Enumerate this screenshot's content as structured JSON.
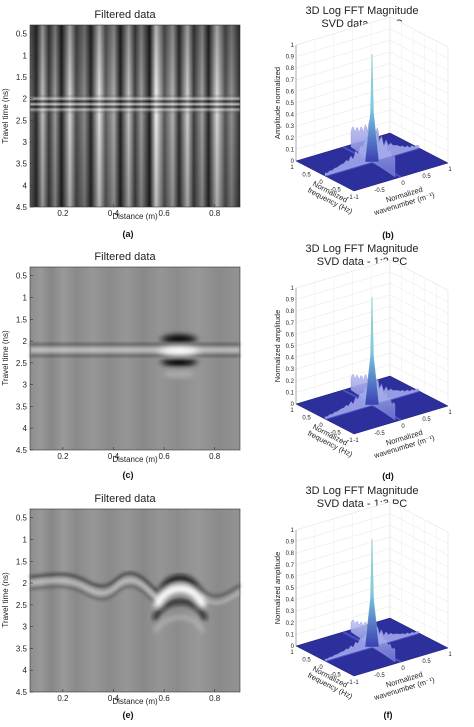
{
  "chart_data": [
    {
      "panel": "(a)",
      "type": "heatmap",
      "title": "Filtered data",
      "xlabel": "Distance (m)",
      "ylabel": "Travel time (ns)",
      "x_ticks": [
        "0.2",
        "0.4",
        "0.6",
        "0.8"
      ],
      "y_ticks": [
        "0.5",
        "1",
        "1.5",
        "2",
        "2.5",
        "3",
        "3.5",
        "4",
        "4.5"
      ],
      "xlim": [
        0.07,
        0.9
      ],
      "ylim": [
        4.5,
        0.3
      ],
      "colormap": "gray"
    },
    {
      "panel": "(b)",
      "type": "surface3d",
      "title": [
        "3D Log FFT Magnitude",
        "SVD data - 1 PC"
      ],
      "zlabel": "Amplitude normalized",
      "xlabel": [
        "Normalized",
        "frequency (Hz)"
      ],
      "ylabel": [
        "Normalized",
        "wavenumber (m⁻¹)"
      ],
      "z_ticks": [
        "0",
        "0.1",
        "0.2",
        "0.3",
        "0.4",
        "0.5",
        "0.6",
        "0.7",
        "0.8",
        "0.9",
        "1"
      ],
      "x_ticks": [
        "1",
        "0.5",
        "0",
        "-0.5",
        "-1"
      ],
      "y_ticks": [
        "-1",
        "-0.5",
        "0",
        "0.5",
        "1"
      ],
      "zlim": [
        0,
        1
      ],
      "colormap": "cool"
    },
    {
      "panel": "(c)",
      "type": "heatmap",
      "title": "Filtered data",
      "xlabel": "Distance (m)",
      "ylabel": "Travel time (ns)",
      "x_ticks": [
        "0.2",
        "0.4",
        "0.6",
        "0.8"
      ],
      "y_ticks": [
        "0.5",
        "1",
        "1.5",
        "2",
        "2.5",
        "3",
        "3.5",
        "4",
        "4.5"
      ],
      "xlim": [
        0.07,
        0.9
      ],
      "ylim": [
        4.5,
        0.3
      ],
      "colormap": "gray"
    },
    {
      "panel": "(d)",
      "type": "surface3d",
      "title": [
        "3D Log FFT Magnitude",
        "SVD data - 1:2 PC"
      ],
      "zlabel": "Normalized amplitude",
      "xlabel": [
        "Normalized",
        "frequency (Hz)"
      ],
      "ylabel": [
        "Normalized",
        "wavenumber (m⁻¹)"
      ],
      "z_ticks": [
        "0",
        "0.1",
        "0.2",
        "0.3",
        "0.4",
        "0.5",
        "0.6",
        "0.7",
        "0.8",
        "0.9",
        "1"
      ],
      "x_ticks": [
        "1",
        "0.5",
        "0",
        "-0.5",
        "-1"
      ],
      "y_ticks": [
        "-1",
        "-0.5",
        "0",
        "0.5",
        "1"
      ],
      "zlim": [
        0,
        1
      ],
      "colormap": "cool"
    },
    {
      "panel": "(e)",
      "type": "heatmap",
      "title": "Filtered data",
      "xlabel": "Distance (m)",
      "ylabel": "Travel time (ns)",
      "x_ticks": [
        "0.2",
        "0.4",
        "0.6",
        "0.8"
      ],
      "y_ticks": [
        "0.5",
        "1",
        "1.5",
        "2",
        "2.5",
        "3",
        "3.5",
        "4",
        "4.5"
      ],
      "xlim": [
        0.07,
        0.9
      ],
      "ylim": [
        4.5,
        0.3
      ],
      "colormap": "gray"
    },
    {
      "panel": "(f)",
      "type": "surface3d",
      "title": [
        "3D Log FFT Magnitude",
        "SVD data - 1:3 PC"
      ],
      "zlabel": "Normalized amplitude",
      "xlabel": [
        "Normalized",
        "frequency (Hz)"
      ],
      "ylabel": [
        "Normalized",
        "wavenumber (m⁻¹)"
      ],
      "z_ticks": [
        "0",
        "0.1",
        "0.2",
        "0.3",
        "0.4",
        "0.5",
        "0.6",
        "0.7",
        "0.8",
        "0.9",
        "1"
      ],
      "x_ticks": [
        "1",
        "0.5",
        "0",
        "-0.5",
        "-1"
      ],
      "y_ticks": [
        "-1",
        "-0.5",
        "0",
        "0.5",
        "1"
      ],
      "zlim": [
        0,
        1
      ],
      "colormap": "cool"
    }
  ]
}
